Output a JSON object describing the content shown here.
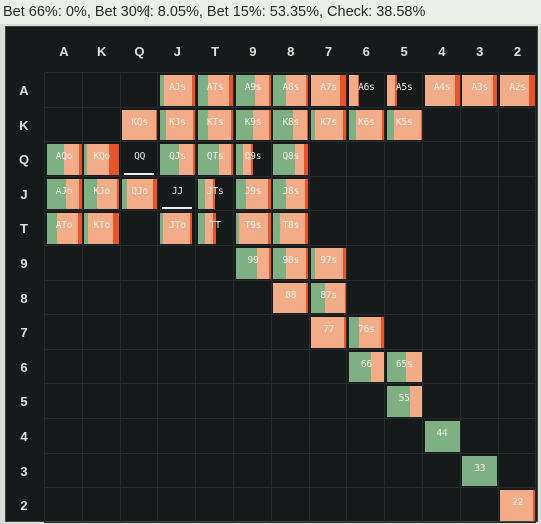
{
  "header": {
    "stats_text": "Bet 66%: 0%, Bet 30%: 8.05%, Bet 15%: 53.35%, Check: 38.58%"
  },
  "colors": {
    "background": "#161a1b",
    "check": "#7fb083",
    "bet15": "#f2ad88",
    "bet30": "#e8532a",
    "bet66": "#b52a1a"
  },
  "ranks": [
    "A",
    "K",
    "Q",
    "J",
    "T",
    "9",
    "8",
    "7",
    "6",
    "5",
    "4",
    "3",
    "2"
  ],
  "cells": [
    {
      "r": 0,
      "c": 3,
      "label": "AJs",
      "f": [
        0.12,
        0.8,
        0.08,
        0
      ]
    },
    {
      "r": 0,
      "c": 4,
      "label": "ATs",
      "f": [
        0.3,
        0.6,
        0.1,
        0
      ]
    },
    {
      "r": 0,
      "c": 5,
      "label": "A9s",
      "f": [
        0.55,
        0.4,
        0.05,
        0
      ]
    },
    {
      "r": 0,
      "c": 6,
      "label": "A8s",
      "f": [
        0.35,
        0.58,
        0.07,
        0
      ]
    },
    {
      "r": 0,
      "c": 7,
      "label": "A7s",
      "f": [
        0,
        0.82,
        0.18,
        0
      ]
    },
    {
      "r": 0,
      "c": 8,
      "label": "A6s",
      "f": [
        0,
        0,
        0,
        0
      ]
    },
    {
      "r": 0,
      "c": 9,
      "label": "A5s",
      "f": [
        0,
        0,
        0,
        0
      ]
    },
    {
      "r": 0,
      "c": 10,
      "label": "A4s",
      "f": [
        0,
        0.86,
        0.14,
        0
      ]
    },
    {
      "r": 0,
      "c": 11,
      "label": "A3s",
      "f": [
        0,
        0.88,
        0.12,
        0
      ]
    },
    {
      "r": 0,
      "c": 12,
      "label": "A2s",
      "f": [
        0,
        0.82,
        0.18,
        0
      ]
    },
    {
      "r": 1,
      "c": 2,
      "label": "KQs",
      "f": [
        0,
        0.96,
        0.04,
        0
      ]
    },
    {
      "r": 1,
      "c": 3,
      "label": "KJs",
      "f": [
        0.18,
        0.78,
        0.04,
        0
      ]
    },
    {
      "r": 1,
      "c": 4,
      "label": "KTs",
      "f": [
        0.3,
        0.66,
        0.04,
        0
      ]
    },
    {
      "r": 1,
      "c": 5,
      "label": "K9s",
      "f": [
        0.5,
        0.46,
        0.04,
        0
      ]
    },
    {
      "r": 1,
      "c": 6,
      "label": "K8s",
      "f": [
        0.55,
        0.41,
        0.04,
        0
      ]
    },
    {
      "r": 1,
      "c": 7,
      "label": "K7s",
      "f": [
        0,
        0,
        0,
        0
      ]
    },
    {
      "r": 1,
      "c": 8,
      "label": "K6s",
      "f": [
        0.2,
        0.76,
        0.04,
        0
      ]
    },
    {
      "r": 1,
      "c": 9,
      "label": "K5s",
      "f": [
        0.2,
        0.78,
        0.02,
        0
      ]
    },
    {
      "r": 2,
      "c": 0,
      "label": "AQo",
      "f": [
        0.5,
        0.44,
        0.06,
        0
      ]
    },
    {
      "r": 2,
      "c": 1,
      "label": "KQo",
      "f": [
        0.08,
        0.64,
        0.28,
        0
      ]
    },
    {
      "r": 2,
      "c": 2,
      "label": "QQ",
      "f": [
        0,
        0,
        0,
        0
      ]
    },
    {
      "r": 2,
      "c": 3,
      "label": "QJs",
      "f": [
        0.55,
        0.4,
        0.05,
        0
      ]
    },
    {
      "r": 2,
      "c": 4,
      "label": "QTs",
      "f": [
        0.62,
        0.34,
        0.04,
        0
      ]
    },
    {
      "r": 2,
      "c": 5,
      "label": "Q9s",
      "f": [
        0,
        0,
        0,
        0
      ]
    },
    {
      "r": 2,
      "c": 6,
      "label": "Q8s",
      "f": [
        0.62,
        0.26,
        0.12,
        0
      ]
    },
    {
      "r": 3,
      "c": 0,
      "label": "AJo",
      "f": [
        0.55,
        0.38,
        0.07,
        0
      ]
    },
    {
      "r": 3,
      "c": 1,
      "label": "KJo",
      "f": [
        0.35,
        0.58,
        0.07,
        0
      ]
    },
    {
      "r": 3,
      "c": 2,
      "label": "QJo",
      "f": [
        0.15,
        0.72,
        0.13,
        0
      ]
    },
    {
      "r": 3,
      "c": 3,
      "label": "JJ",
      "f": [
        0,
        0,
        0,
        0
      ]
    },
    {
      "r": 3,
      "c": 4,
      "label": "JTs",
      "f": [
        0,
        0,
        0,
        0
      ]
    },
    {
      "r": 3,
      "c": 5,
      "label": "J9s",
      "f": [
        0.3,
        0.64,
        0.06,
        0
      ]
    },
    {
      "r": 3,
      "c": 6,
      "label": "J8s",
      "f": [
        0.35,
        0.55,
        0.1,
        0
      ]
    },
    {
      "r": 4,
      "c": 0,
      "label": "ATo",
      "f": [
        0.3,
        0.6,
        0.1,
        0
      ]
    },
    {
      "r": 4,
      "c": 1,
      "label": "KTo",
      "f": [
        0.1,
        0.72,
        0.18,
        0
      ]
    },
    {
      "r": 4,
      "c": 3,
      "label": "JTo",
      "f": [
        0,
        0,
        0,
        0
      ]
    },
    {
      "r": 4,
      "c": 4,
      "label": "TT",
      "f": [
        0,
        0,
        0,
        0
      ]
    },
    {
      "r": 4,
      "c": 5,
      "label": "T9s",
      "f": [
        0.1,
        0.84,
        0.06,
        0
      ]
    },
    {
      "r": 4,
      "c": 6,
      "label": "T8s",
      "f": [
        0.18,
        0.74,
        0.08,
        0
      ]
    },
    {
      "r": 5,
      "c": 5,
      "label": "99",
      "f": [
        0.62,
        0.34,
        0.04,
        0
      ]
    },
    {
      "r": 5,
      "c": 6,
      "label": "98s",
      "f": [
        0.35,
        0.58,
        0.07,
        0
      ]
    },
    {
      "r": 5,
      "c": 7,
      "label": "97s",
      "f": [
        0.12,
        0.8,
        0.08,
        0
      ]
    },
    {
      "r": 6,
      "c": 6,
      "label": "88",
      "f": [
        0,
        0.94,
        0.06,
        0
      ]
    },
    {
      "r": 6,
      "c": 7,
      "label": "87s",
      "f": [
        0.4,
        0.56,
        0.04,
        0
      ]
    },
    {
      "r": 7,
      "c": 7,
      "label": "77",
      "f": [
        0,
        0.94,
        0.06,
        0
      ]
    },
    {
      "r": 7,
      "c": 8,
      "label": "76s",
      "f": [
        0.3,
        0.62,
        0.08,
        0
      ]
    },
    {
      "r": 8,
      "c": 8,
      "label": "66",
      "f": [
        0.64,
        0.36,
        0,
        0
      ]
    },
    {
      "r": 8,
      "c": 9,
      "label": "65s",
      "f": [
        0,
        0,
        0,
        0
      ]
    },
    {
      "r": 9,
      "c": 9,
      "label": "55",
      "f": [
        0.66,
        0.34,
        0,
        0
      ]
    },
    {
      "r": 10,
      "c": 10,
      "label": "44",
      "f": [
        1.0,
        0,
        0,
        0
      ]
    },
    {
      "r": 11,
      "c": 11,
      "label": "33",
      "f": [
        1.0,
        0,
        0,
        0
      ]
    },
    {
      "r": 12,
      "c": 12,
      "label": "22",
      "f": [
        0,
        0.95,
        0.05,
        0
      ]
    }
  ],
  "partial_cells": [
    {
      "r": 0,
      "c": 8,
      "label": "A6s",
      "f": [
        0,
        0.25,
        0.03,
        0
      ]
    },
    {
      "r": 0,
      "c": 9,
      "label": "A5s",
      "f": [
        0,
        0.25,
        0.03,
        0
      ]
    },
    {
      "r": 1,
      "c": 7,
      "label": "K7s",
      "f": [
        0.1,
        0.8,
        0.1,
        0
      ]
    },
    {
      "r": 2,
      "c": 2,
      "label": "QQ",
      "f": [
        0,
        0,
        0,
        0
      ]
    },
    {
      "r": 2,
      "c": 5,
      "label": "Q9s",
      "f": [
        0.2,
        0.25,
        0.05,
        0
      ]
    },
    {
      "r": 3,
      "c": 3,
      "label": "JJ",
      "f": [
        0,
        0,
        0,
        0
      ]
    },
    {
      "r": 3,
      "c": 4,
      "label": "JTs",
      "f": [
        0.2,
        0.25,
        0.03,
        0
      ]
    },
    {
      "r": 4,
      "c": 3,
      "label": "JTo",
      "f": [
        0.1,
        0.75,
        0.05,
        0
      ]
    },
    {
      "r": 4,
      "c": 4,
      "label": "TT",
      "f": [
        0.2,
        0.25,
        0.05,
        0
      ]
    },
    {
      "r": 8,
      "c": 9,
      "label": "65s",
      "f": [
        0.55,
        0.45,
        0,
        0
      ]
    }
  ]
}
